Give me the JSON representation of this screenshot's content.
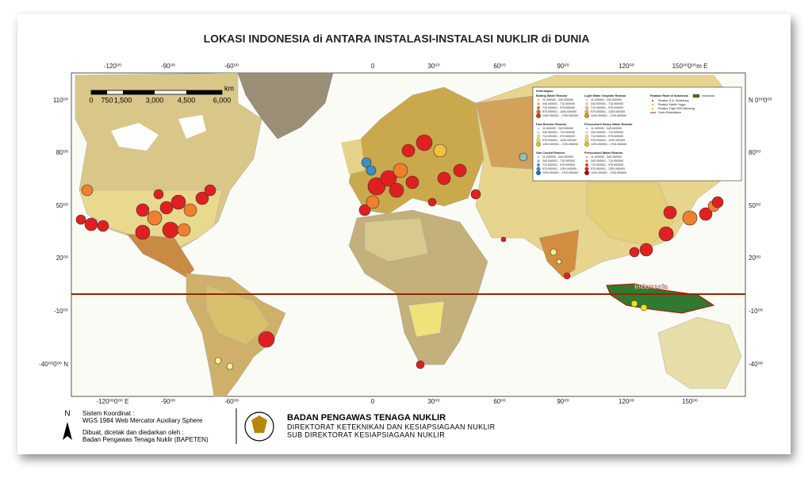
{
  "title": "LOKASI INDONESIA di ANTARA INSTALASI-INSTALASI NUKLIR di DUNIA",
  "scale": {
    "unit": "km",
    "labels": [
      "0",
      "750",
      "1,500",
      "3,000",
      "4,500",
      "6,000"
    ]
  },
  "grid": {
    "top": [
      "-120⁰⁰",
      "-90⁰⁰",
      "-60⁰⁰",
      "0",
      "30⁰⁰",
      "60⁰⁰",
      "90⁰⁰",
      "120⁰⁰",
      "150⁰⁰0⁰⁰m E"
    ],
    "bottom": [
      "-120⁰⁰0⁰⁰ E",
      "-90⁰⁰",
      "-60⁰⁰",
      "0",
      "30⁰⁰",
      "60⁰⁰",
      "90⁰⁰",
      "120⁰⁰",
      "150⁰⁰"
    ],
    "left": [
      "110⁰⁰",
      "80⁰⁰",
      "50⁰⁰",
      "20⁰⁰",
      "-10⁰⁰",
      "-40⁰⁰0⁰⁰ N"
    ],
    "right": [
      "N 0⁰⁰0⁰⁰",
      "80⁰⁰",
      "50⁰⁰",
      "20⁰⁰",
      "-10⁰⁰",
      "-40⁰⁰"
    ]
  },
  "map_label": "Indonesia",
  "legend": {
    "title": "Keterangan:",
    "groups": [
      {
        "name": "Boiling Water Reactor",
        "classes": [
          "11.000000 - 340.000000",
          "340.000001 - 710.000000",
          "710.000001 - 975.000000",
          "975.000001 - 1200.000000",
          "1200.000001 - 1700.000000"
        ]
      },
      {
        "name": "Light Water Graphite Reactor",
        "classes": [
          "11.000000 - 340.000000",
          "340.000001 - 710.000000",
          "710.000001 - 975.000000",
          "975.000001 - 1200.000000",
          "1200.000001 - 1700.000000"
        ]
      },
      {
        "name": "Fast Breeder Reactor",
        "classes": [
          "11.000000 - 340.000000",
          "340.000001 - 710.000000",
          "710.000001 - 975.000000",
          "975.000001 - 1200.000000",
          "1200.000001 - 1700.000000"
        ]
      },
      {
        "name": "Pressurised Heavy Water Reactor",
        "classes": [
          "11.000000 - 340.000000",
          "340.000001 - 710.000000",
          "710.000001 - 975.000000",
          "975.000001 - 1200.000000",
          "1200.000001 - 1700.000000"
        ]
      },
      {
        "name": "Gas Cooled Reactor",
        "classes": [
          "11.000000 - 340.000000",
          "340.000001 - 710.000000",
          "710.000001 - 975.000000",
          "975.000001 - 1200.000000",
          "1200.000001 - 1700.000000"
        ]
      },
      {
        "name": "Pressurised Water Reactor",
        "classes": [
          "11.000000 - 340.000000",
          "340.000001 - 710.000000",
          "710.000001 - 975.000000",
          "975.000001 - 1200.000000",
          "1200.000001 - 1700.000000"
        ]
      }
    ],
    "research": {
      "name": "Reaktor Riset di Indonesia",
      "items": [
        "Reaktor G.A. Siwabessy",
        "Reaktor Kartini Yogya",
        "Reaktor Triga 2000 Bandung",
        "Garis Khatulistiwa"
      ],
      "country": "Indonesia"
    }
  },
  "footer": {
    "north": "N",
    "coord_title": "Sistem Koordinat :",
    "coord": "WGS 1984 Web Mercator Auxiliary Sphere",
    "made_by": "Dibuat, dicetak dan diedarkan oleh :",
    "agency": "Badan Pengawas Tenaga Nuklir (BAPETEN)",
    "org": "BADAN PENGAWAS TENAGA NUKLIR",
    "dept": "DIREKTORAT KETEKNIKAN DAN KESIAPSIAGAAN NUKLIR",
    "subdept": "SUB DIREKTORAT KESIAPSIAGAAN NUKLIR"
  }
}
